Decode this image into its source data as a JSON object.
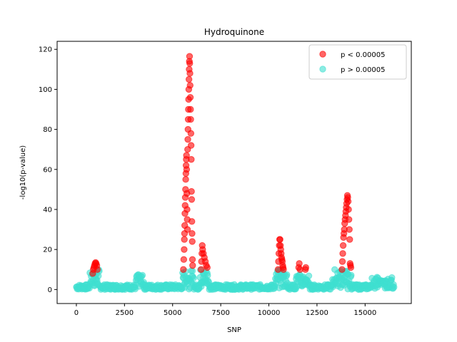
{
  "chart_data": {
    "type": "scatter",
    "title": "Hydroquinone",
    "xlabel": "SNP",
    "ylabel": "-log10(p-value)",
    "xlim": [
      -1000,
      17400
    ],
    "ylim": [
      -7,
      124
    ],
    "xticks": [
      0,
      2500,
      5000,
      7500,
      10000,
      12500,
      15000
    ],
    "yticks": [
      0,
      20,
      40,
      60,
      80,
      100,
      120
    ],
    "legend_position": "upper-right",
    "series": [
      {
        "name": "p < 0.00005",
        "color": "#ff0000",
        "points": [
          [
            850,
            8
          ],
          [
            880,
            10
          ],
          [
            910,
            11
          ],
          [
            940,
            12
          ],
          [
            970,
            13
          ],
          [
            1000,
            13.5
          ],
          [
            1030,
            13
          ],
          [
            1060,
            12
          ],
          [
            1090,
            10
          ],
          [
            5560,
            10
          ],
          [
            5580,
            15
          ],
          [
            5600,
            20
          ],
          [
            5610,
            25
          ],
          [
            5620,
            28
          ],
          [
            5630,
            32
          ],
          [
            5640,
            38
          ],
          [
            5650,
            42
          ],
          [
            5660,
            46
          ],
          [
            5670,
            50
          ],
          [
            5680,
            55
          ],
          [
            5690,
            58
          ],
          [
            5700,
            62
          ],
          [
            5710,
            65
          ],
          [
            5720,
            67
          ],
          [
            5730,
            60
          ],
          [
            5740,
            48
          ],
          [
            5750,
            40
          ],
          [
            5760,
            35
          ],
          [
            5770,
            30
          ],
          [
            5780,
            70
          ],
          [
            5790,
            75
          ],
          [
            5800,
            80
          ],
          [
            5810,
            85
          ],
          [
            5820,
            90
          ],
          [
            5830,
            95
          ],
          [
            5840,
            100
          ],
          [
            5850,
            105
          ],
          [
            5860,
            110
          ],
          [
            5870,
            114
          ],
          [
            5880,
            116.5
          ],
          [
            5890,
            113
          ],
          [
            5900,
            108
          ],
          [
            5910,
            102
          ],
          [
            5920,
            96
          ],
          [
            5930,
            90
          ],
          [
            5940,
            85
          ],
          [
            5950,
            78
          ],
          [
            5960,
            72
          ],
          [
            5970,
            65
          ],
          [
            5980,
            49
          ],
          [
            5990,
            45
          ],
          [
            6000,
            34
          ],
          [
            6010,
            28
          ],
          [
            6020,
            24
          ],
          [
            6030,
            15
          ],
          [
            6040,
            12
          ],
          [
            6480,
            10
          ],
          [
            6500,
            14
          ],
          [
            6520,
            18
          ],
          [
            6540,
            22
          ],
          [
            6560,
            20
          ],
          [
            6600,
            18
          ],
          [
            6650,
            16
          ],
          [
            6700,
            14
          ],
          [
            6750,
            12
          ],
          [
            6800,
            11
          ],
          [
            10480,
            10
          ],
          [
            10500,
            14
          ],
          [
            10520,
            18
          ],
          [
            10540,
            22
          ],
          [
            10560,
            25
          ],
          [
            10580,
            25
          ],
          [
            10600,
            22
          ],
          [
            10620,
            20
          ],
          [
            10640,
            18
          ],
          [
            10660,
            16
          ],
          [
            10680,
            15
          ],
          [
            10700,
            14
          ],
          [
            10720,
            12
          ],
          [
            10740,
            11
          ],
          [
            10760,
            10
          ],
          [
            11550,
            11
          ],
          [
            11580,
            13
          ],
          [
            11620,
            10
          ],
          [
            11900,
            10
          ],
          [
            11920,
            11
          ],
          [
            13800,
            10
          ],
          [
            13820,
            14
          ],
          [
            13840,
            18
          ],
          [
            13860,
            22
          ],
          [
            13880,
            26
          ],
          [
            13900,
            28
          ],
          [
            13920,
            30
          ],
          [
            13940,
            33
          ],
          [
            13960,
            35
          ],
          [
            13980,
            37
          ],
          [
            14000,
            39
          ],
          [
            14020,
            41
          ],
          [
            14040,
            43
          ],
          [
            14060,
            45
          ],
          [
            14080,
            47
          ],
          [
            14100,
            46
          ],
          [
            14120,
            44
          ],
          [
            14140,
            40
          ],
          [
            14160,
            35
          ],
          [
            14180,
            30
          ],
          [
            14200,
            25
          ],
          [
            14220,
            13
          ],
          [
            14240,
            12
          ],
          [
            14260,
            11
          ]
        ]
      },
      {
        "name": "p > 0.00005",
        "color": "#40e0d0",
        "points": []
      }
    ]
  }
}
